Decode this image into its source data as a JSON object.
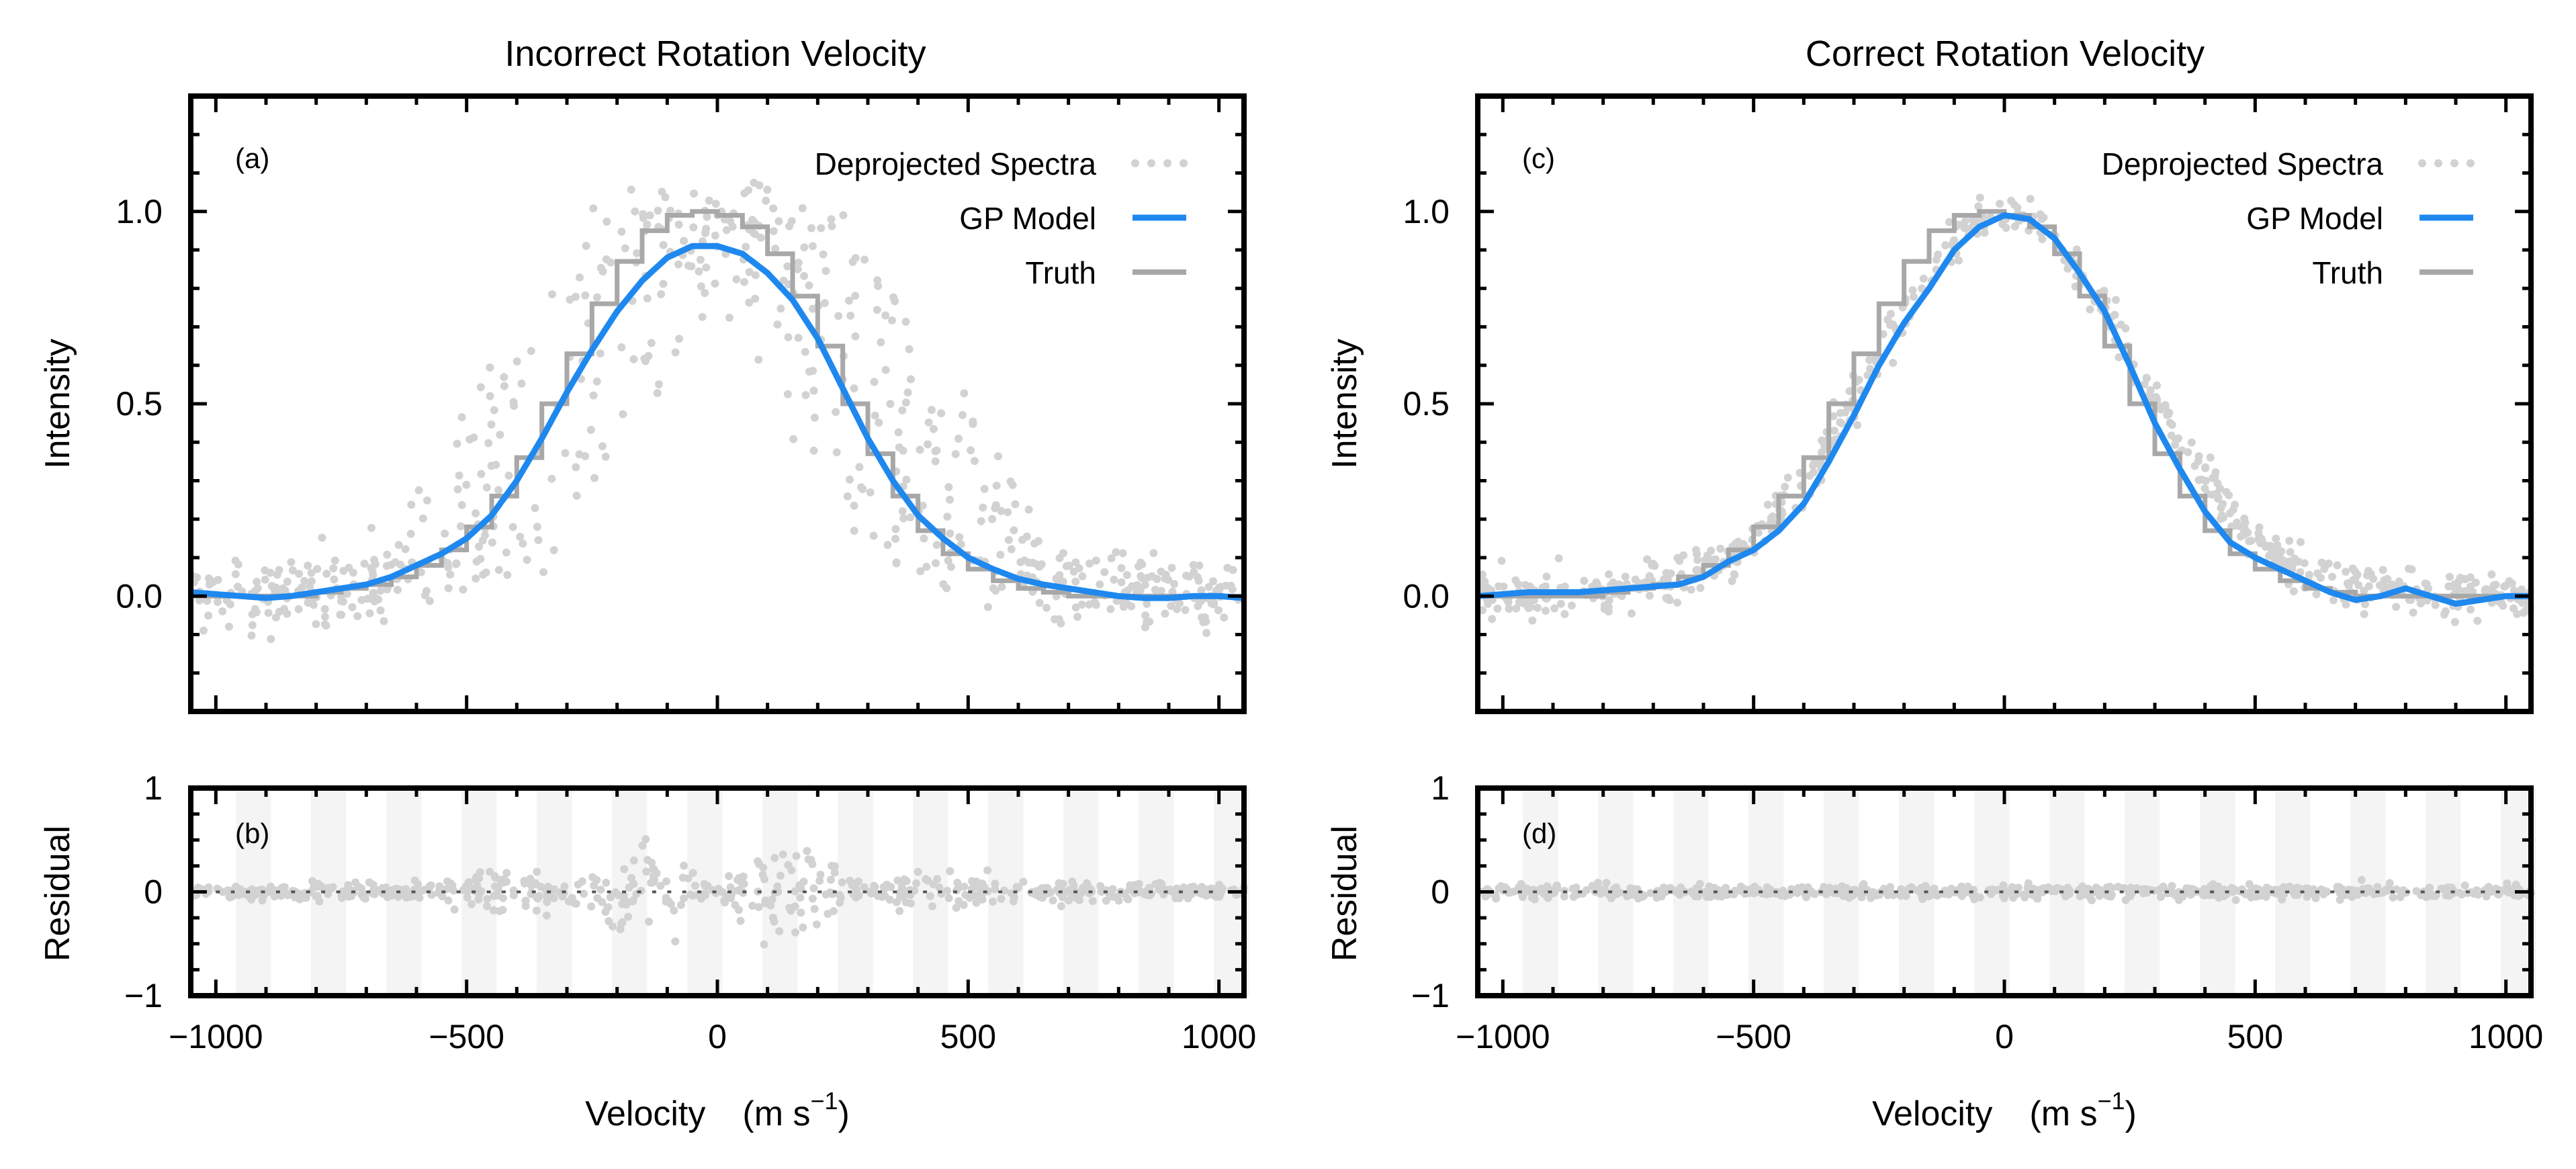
{
  "figure": {
    "colors": {
      "model": "#1e88ef",
      "truth": "#a8a8a8",
      "points": "#d2d2d2",
      "band": "#f4f4f4",
      "axis": "#000000"
    }
  },
  "chart_data": [
    {
      "id": "a",
      "type": "scatter",
      "title": "Incorrect Rotation Velocity",
      "panel_label": "(a)",
      "ylabel": "Intensity",
      "xlabel": "",
      "xlim": [
        -1050,
        1050
      ],
      "ylim": [
        -0.3,
        1.3
      ],
      "yticks": [
        0.0,
        0.5,
        1.0
      ],
      "ytick_labels": [
        "0.0",
        "0.5",
        "1.0"
      ],
      "legend_position": "top-right",
      "legend": [
        "Deprojected Spectra",
        "GP Model",
        "Truth"
      ],
      "series": [
        {
          "name": "GP Model",
          "kind": "line",
          "x": [
            -1050,
            -1000,
            -950,
            -900,
            -850,
            -800,
            -750,
            -700,
            -650,
            -600,
            -550,
            -500,
            -450,
            -400,
            -350,
            -300,
            -250,
            -200,
            -150,
            -100,
            -50,
            0,
            50,
            100,
            150,
            200,
            250,
            300,
            350,
            400,
            450,
            500,
            550,
            600,
            650,
            700,
            750,
            800,
            850,
            900,
            950,
            1000,
            1050
          ],
          "y": [
            0.01,
            0.005,
            0.0,
            -0.005,
            0.0,
            0.01,
            0.02,
            0.03,
            0.05,
            0.08,
            0.11,
            0.15,
            0.21,
            0.3,
            0.41,
            0.53,
            0.64,
            0.74,
            0.82,
            0.88,
            0.91,
            0.91,
            0.89,
            0.84,
            0.77,
            0.67,
            0.54,
            0.41,
            0.3,
            0.21,
            0.15,
            0.1,
            0.07,
            0.045,
            0.03,
            0.02,
            0.01,
            0.0,
            -0.005,
            -0.005,
            0.0,
            0.0,
            -0.005
          ]
        },
        {
          "name": "Truth",
          "kind": "step",
          "edges": [
            -1050,
            -1000,
            -950,
            -900,
            -850,
            -800,
            -750,
            -700,
            -650,
            -600,
            -550,
            -500,
            -450,
            -400,
            -350,
            -300,
            -250,
            -200,
            -150,
            -100,
            -50,
            0,
            50,
            100,
            150,
            200,
            250,
            300,
            350,
            400,
            450,
            500,
            550,
            600,
            650,
            700,
            750,
            800,
            850,
            900,
            950,
            1000,
            1050
          ],
          "values": [
            0.0,
            0.0,
            0.0,
            0.0,
            0.0,
            0.01,
            0.02,
            0.03,
            0.05,
            0.08,
            0.12,
            0.18,
            0.26,
            0.36,
            0.5,
            0.63,
            0.76,
            0.87,
            0.95,
            0.99,
            1.0,
            0.99,
            0.96,
            0.89,
            0.78,
            0.65,
            0.5,
            0.37,
            0.26,
            0.17,
            0.11,
            0.07,
            0.04,
            0.02,
            0.01,
            0.0,
            0.0,
            0.0,
            0.0,
            0.0,
            0.0,
            0.0
          ]
        },
        {
          "name": "Deprojected Spectra",
          "kind": "points",
          "count": 650,
          "spread": "broad"
        }
      ]
    },
    {
      "id": "b",
      "type": "scatter",
      "panel_label": "(b)",
      "ylabel": "Residual",
      "xlabel": "Velocity",
      "xlabel_unit": "(m s",
      "xlabel_sup": "−1",
      "xlabel_close": ")",
      "xlim": [
        -1050,
        1050
      ],
      "ylim": [
        -1,
        1
      ],
      "yticks": [
        -1,
        0,
        1
      ],
      "ytick_labels": [
        "−1",
        "0",
        "1"
      ],
      "xticks": [
        -1000,
        -500,
        0,
        500,
        1000
      ],
      "xtick_labels": [
        "−1000",
        "−500",
        "0",
        "500",
        "1000"
      ],
      "series": [
        {
          "name": "Residuals",
          "kind": "points",
          "count": 650,
          "spread": "broad"
        }
      ]
    },
    {
      "id": "c",
      "type": "scatter",
      "title": "Correct Rotation Velocity",
      "panel_label": "(c)",
      "ylabel": "Intensity",
      "xlabel": "",
      "xlim": [
        -1050,
        1050
      ],
      "ylim": [
        -0.3,
        1.3
      ],
      "yticks": [
        0.0,
        0.5,
        1.0
      ],
      "ytick_labels": [
        "0.0",
        "0.5",
        "1.0"
      ],
      "legend_position": "top-right",
      "legend": [
        "Deprojected Spectra",
        "GP Model",
        "Truth"
      ],
      "series": [
        {
          "name": "GP Model",
          "kind": "line",
          "x": [
            -1050,
            -1000,
            -950,
            -900,
            -850,
            -800,
            -750,
            -700,
            -650,
            -600,
            -550,
            -500,
            -450,
            -400,
            -350,
            -300,
            -250,
            -200,
            -150,
            -100,
            -50,
            0,
            50,
            100,
            150,
            200,
            250,
            300,
            350,
            400,
            450,
            500,
            550,
            600,
            650,
            700,
            750,
            800,
            850,
            900,
            950,
            1000,
            1050
          ],
          "y": [
            0.0,
            0.005,
            0.01,
            0.01,
            0.01,
            0.015,
            0.02,
            0.025,
            0.03,
            0.05,
            0.09,
            0.12,
            0.17,
            0.24,
            0.35,
            0.47,
            0.6,
            0.71,
            0.8,
            0.9,
            0.96,
            0.99,
            0.98,
            0.93,
            0.84,
            0.74,
            0.6,
            0.45,
            0.33,
            0.22,
            0.14,
            0.1,
            0.07,
            0.04,
            0.01,
            -0.01,
            0.0,
            0.02,
            0.0,
            -0.02,
            -0.01,
            0.0,
            0.0
          ]
        },
        {
          "name": "Truth",
          "kind": "step",
          "edges": [
            -1050,
            -1000,
            -950,
            -900,
            -850,
            -800,
            -750,
            -700,
            -650,
            -600,
            -550,
            -500,
            -450,
            -400,
            -350,
            -300,
            -250,
            -200,
            -150,
            -100,
            -50,
            0,
            50,
            100,
            150,
            200,
            250,
            300,
            350,
            400,
            450,
            500,
            550,
            600,
            650,
            700,
            750,
            800,
            850,
            900,
            950,
            1000,
            1050
          ],
          "values": [
            0.0,
            0.0,
            0.0,
            0.0,
            0.0,
            0.01,
            0.02,
            0.03,
            0.05,
            0.08,
            0.12,
            0.18,
            0.26,
            0.36,
            0.5,
            0.63,
            0.76,
            0.87,
            0.95,
            0.99,
            1.0,
            0.99,
            0.96,
            0.89,
            0.78,
            0.65,
            0.5,
            0.37,
            0.26,
            0.17,
            0.11,
            0.07,
            0.04,
            0.02,
            0.01,
            0.0,
            0.0,
            0.0,
            0.0,
            0.0,
            0.0,
            0.0
          ]
        },
        {
          "name": "Deprojected Spectra",
          "kind": "points",
          "count": 650,
          "spread": "tight"
        }
      ]
    },
    {
      "id": "d",
      "type": "scatter",
      "panel_label": "(d)",
      "ylabel": "Residual",
      "xlabel": "Velocity",
      "xlabel_unit": "(m s",
      "xlabel_sup": "−1",
      "xlabel_close": ")",
      "xlim": [
        -1050,
        1050
      ],
      "ylim": [
        -1,
        1
      ],
      "yticks": [
        -1,
        0,
        1
      ],
      "ytick_labels": [
        "−1",
        "0",
        "1"
      ],
      "xticks": [
        -1000,
        -500,
        0,
        500,
        1000
      ],
      "xtick_labels": [
        "−1000",
        "−500",
        "0",
        "500",
        "1000"
      ],
      "series": [
        {
          "name": "Residuals",
          "kind": "points",
          "count": 650,
          "spread": "tight"
        }
      ]
    }
  ]
}
